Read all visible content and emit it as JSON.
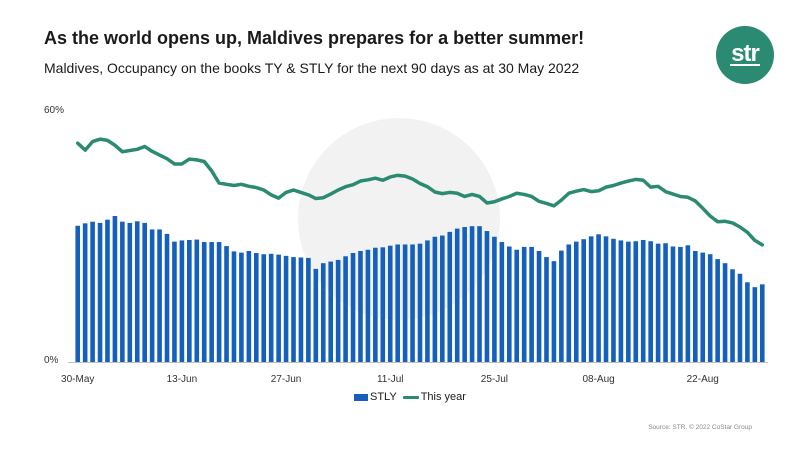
{
  "header": {
    "title": "As the world opens up, Maldives prepares for a better summer!",
    "subtitle": "Maldives, Occupancy on the books TY & STLY for the next 90 days as at 30 May 2022"
  },
  "logo": {
    "text": "str",
    "color": "#2a8a72"
  },
  "source": "Source: STR. © 2022 CoStar Group",
  "colors": {
    "bars": "#1560bd",
    "line": "#2a8a72"
  },
  "chart_data": {
    "type": "bar",
    "ylim": [
      0,
      60
    ],
    "yticks": [
      "0%",
      "60%"
    ],
    "x_tick_labels": [
      "30-May",
      "13-Jun",
      "27-Jun",
      "11-Jul",
      "25-Jul",
      "08-Aug",
      "22-Aug"
    ],
    "x_tick_positions": [
      0,
      14,
      28,
      42,
      56,
      70,
      84
    ],
    "grid": false,
    "legend_position": "bottom",
    "series": [
      {
        "name": "STLY",
        "type": "bar",
        "values": [
          33.5,
          34.1,
          34.5,
          34.2,
          35,
          35.9,
          34.5,
          34.2,
          34.6,
          34.2,
          32.6,
          32.6,
          31.5,
          29.6,
          29.9,
          30,
          30.1,
          29.5,
          29.5,
          29.5,
          28.5,
          27.2,
          26.9,
          27.3,
          26.8,
          26.5,
          26.6,
          26.4,
          26.1,
          25.8,
          25.7,
          25.6,
          22.9,
          24.3,
          24.7,
          25.1,
          26,
          26.8,
          27.3,
          27.6,
          28.1,
          28.2,
          28.6,
          28.9,
          28.9,
          28.9,
          29.1,
          29.9,
          30.8,
          31.1,
          32,
          32.8,
          33.2,
          33.4,
          33.4,
          32.2,
          30.8,
          29.5,
          28.4,
          27.6,
          28.3,
          28.3,
          27.3,
          25.8,
          24.8,
          27.4,
          28.9,
          29.6,
          30.2,
          30.9,
          31.4,
          30.9,
          30.3,
          29.9,
          29.6,
          29.7,
          30,
          29.7,
          29.1,
          29.2,
          28.4,
          28.3,
          28.7,
          27.3,
          26.9,
          26.5,
          25.3,
          24.3,
          22.8,
          21.7,
          19.6,
          18.4,
          19.1
        ]
      },
      {
        "name": "This year",
        "type": "line",
        "values": [
          53.8,
          52.1,
          54.2,
          54.8,
          54.5,
          53.3,
          51.7,
          52,
          52.3,
          53,
          51.8,
          50.9,
          50,
          48.7,
          48.7,
          49.9,
          49.7,
          49.3,
          47,
          44,
          43.7,
          43.4,
          43.7,
          43.2,
          42.9,
          42.3,
          41.1,
          40.3,
          41.7,
          42.3,
          41.7,
          41.1,
          40.2,
          40.4,
          41.3,
          42.3,
          43.1,
          43.6,
          44.5,
          44.8,
          45.2,
          44.7,
          45.5,
          45.9,
          45.7,
          45,
          43.9,
          43.1,
          41.8,
          41.4,
          41.7,
          41.5,
          40.7,
          41.2,
          40.7,
          39.1,
          39.4,
          40.1,
          40.7,
          41.5,
          41.2,
          40.7,
          39.5,
          39,
          38.4,
          39.8,
          41.5,
          42,
          42.4,
          41.9,
          42.1,
          43,
          43.4,
          44,
          44.5,
          44.9,
          44.7,
          43,
          43.2,
          41.9,
          41.3,
          40.7,
          40.5,
          39.6,
          37.8,
          35.9,
          34.5,
          34.6,
          34.2,
          33.2,
          31.9,
          29.9,
          28.8
        ]
      }
    ]
  }
}
